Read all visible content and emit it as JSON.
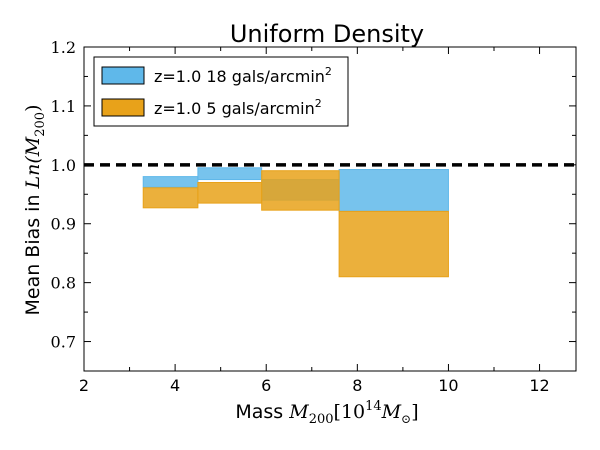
{
  "chart_data": {
    "type": "bar",
    "title": "Uniform Density",
    "xlabel": "Mass",
    "xlabel_math": "M",
    "xlabel_math_sub": "200",
    "xlabel_units_prefix": "[10",
    "xlabel_units_exp": "14",
    "xlabel_units_mass": "M",
    "xlabel_units_sun": "⊙",
    "xlabel_units_suffix": "]",
    "ylabel": "Mean Bias in",
    "ylabel_math": "Ln(M",
    "ylabel_math_sub": "200",
    "ylabel_math_suffix": ")",
    "xlim": [
      2,
      12.8
    ],
    "ylim": [
      0.65,
      1.2
    ],
    "xticks": [
      "2",
      "4",
      "6",
      "8",
      "10",
      "12"
    ],
    "xtick_values": [
      2,
      4,
      6,
      8,
      10,
      12
    ],
    "yticks": [
      "0.7",
      "0.8",
      "0.9",
      "1.0",
      "1.1",
      "1.2"
    ],
    "ytick_values": [
      0.7,
      0.8,
      0.9,
      1.0,
      1.1,
      1.2
    ],
    "reference_line": {
      "y": 1.0,
      "style": "dashed",
      "color": "#000000"
    },
    "legend": {
      "placement": "top-left"
    },
    "series": [
      {
        "name": "z=1.0 18 gals/arcmin",
        "name_sup": "2",
        "color": "#5fb8ea",
        "bins": [
          {
            "x0": 3.3,
            "x1": 4.5,
            "low": 0.962,
            "high": 0.98
          },
          {
            "x0": 4.5,
            "x1": 5.9,
            "low": 0.975,
            "high": 0.995
          },
          {
            "x0": 5.9,
            "x1": 7.6,
            "low": 0.94,
            "high": 0.975
          },
          {
            "x0": 7.6,
            "x1": 10.0,
            "low": 0.921,
            "high": 0.992
          }
        ]
      },
      {
        "name": "z=1.0 5 gals/arcmin",
        "name_sup": "2",
        "color": "#e8a21a",
        "bins": [
          {
            "x0": 3.3,
            "x1": 4.5,
            "low": 0.927,
            "high": 0.961
          },
          {
            "x0": 4.5,
            "x1": 5.9,
            "low": 0.935,
            "high": 0.97
          },
          {
            "x0": 5.9,
            "x1": 7.6,
            "low": 0.923,
            "high": 0.99
          },
          {
            "x0": 7.6,
            "x1": 10.0,
            "low": 0.81,
            "high": 0.921
          }
        ]
      }
    ]
  }
}
